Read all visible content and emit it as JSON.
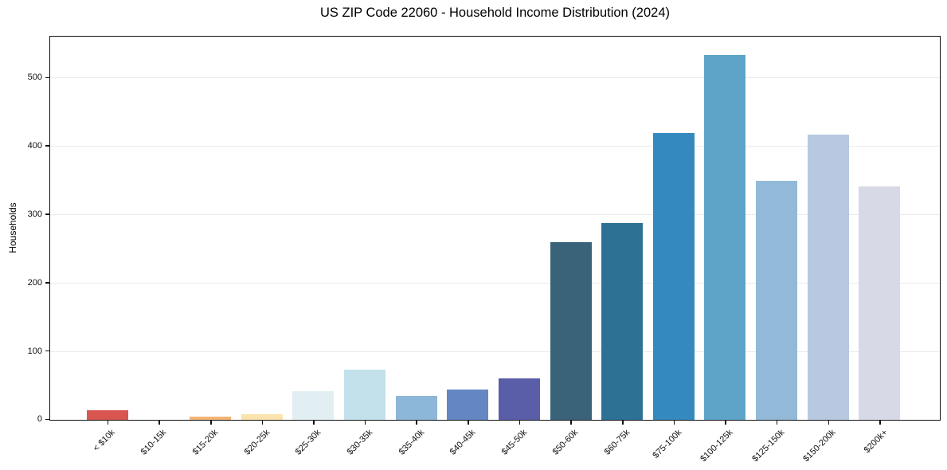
{
  "chart_data": {
    "type": "bar",
    "title": "US ZIP Code 22060 - Household Income Distribution (2024)",
    "xlabel": "",
    "ylabel": "Households",
    "categories": [
      "< $10k",
      "$10-15k",
      "$15-20k",
      "$20-25k",
      "$25-30k",
      "$30-35k",
      "$35-40k",
      "$40-45k",
      "$45-50k",
      "$50-60k",
      "$60-75k",
      "$75-100k",
      "$100-125k",
      "$125-150k",
      "$150-200k",
      "$200k+"
    ],
    "values": [
      14,
      0,
      5,
      8,
      42,
      74,
      35,
      44,
      61,
      260,
      288,
      419,
      534,
      350,
      417,
      341
    ],
    "bar_colors": [
      "#d8564f",
      "#f08a5c",
      "#f3b476",
      "#fae3ac",
      "#e2eff2",
      "#c3e1eb",
      "#8db7d8",
      "#6487c3",
      "#5a5ea9",
      "#3a6278",
      "#2d7195",
      "#348abd",
      "#5ea4c8",
      "#92b9d7",
      "#b7c8e0",
      "#d8d9e6"
    ],
    "yticks": [
      0,
      100,
      200,
      300,
      400,
      500
    ],
    "ylim": [
      0,
      561
    ],
    "grid": "horizontal",
    "gridline_color": "#ebebeb",
    "spine_color": "#111111",
    "background_color": "#ffffff",
    "text_color": "#111111",
    "x_tick_rotation": 45,
    "legend": "none"
  }
}
